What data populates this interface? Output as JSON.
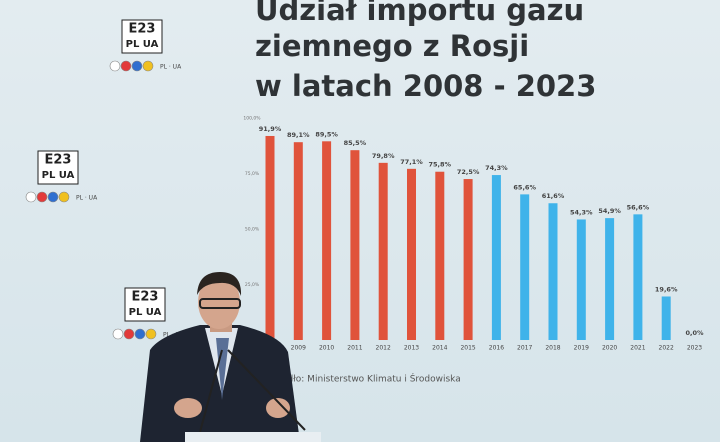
{
  "chart_data": {
    "type": "bar",
    "title": [
      "Udział  importu gazu",
      "ziemnego z Rosji",
      "w latach 2008 - 2023"
    ],
    "categories": [
      "2008",
      "2009",
      "2010",
      "2011",
      "2012",
      "2013",
      "2014",
      "2015",
      "2016",
      "2017",
      "2018",
      "2019",
      "2020",
      "2021",
      "2022",
      "2023"
    ],
    "values": [
      91.9,
      89.1,
      89.5,
      85.5,
      79.8,
      77.1,
      75.8,
      72.5,
      74.3,
      65.6,
      61.6,
      54.3,
      54.9,
      56.6,
      19.6,
      0.0
    ],
    "value_labels": [
      "91,9%",
      "89,1%",
      "89,5%",
      "85,5%",
      "79,8%",
      "77,1%",
      "75,8%",
      "72,5%",
      "74,3%",
      "65,6%",
      "61,6%",
      "54,3%",
      "54,9%",
      "56,6%",
      "19,6%",
      "0,0%"
    ],
    "colors": [
      "#e0533b",
      "#e0533b",
      "#e0533b",
      "#e0533b",
      "#e0533b",
      "#e0533b",
      "#e0533b",
      "#e0533b",
      "#3fb3ea",
      "#3fb3ea",
      "#3fb3ea",
      "#3fb3ea",
      "#3fb3ea",
      "#3fb3ea",
      "#3fb3ea",
      "#3fb3ea"
    ],
    "ylim": [
      0,
      100
    ],
    "yticks": [
      {
        "value": 25,
        "label": "25,0%"
      },
      {
        "value": 50,
        "label": "50,0%"
      },
      {
        "value": 75,
        "label": "75,0%"
      },
      {
        "value": 100,
        "label": "100,0%"
      }
    ],
    "source": "ódło: Ministerstwo Klimatu i Środowiska"
  },
  "logo": {
    "mark": "E23",
    "country": "PL UA",
    "tagline": "PL · UA"
  }
}
